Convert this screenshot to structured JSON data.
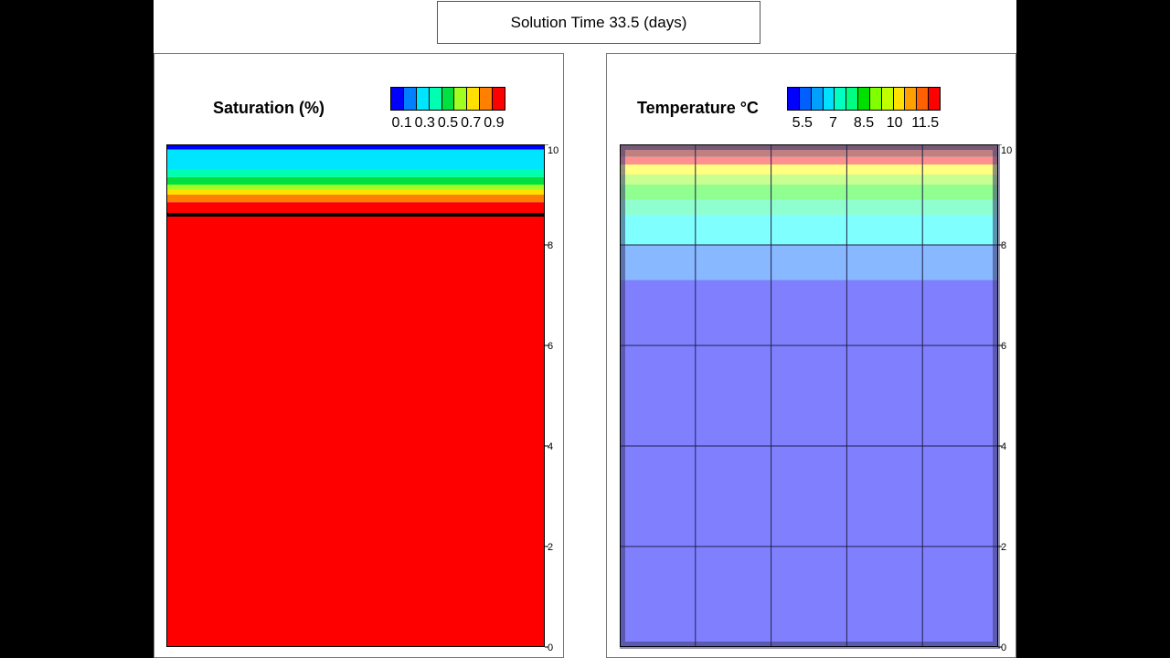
{
  "header": {
    "title": "Solution Time 33.5 (days)"
  },
  "colors": {
    "page_bg": "#000000",
    "sheet_bg": "#ffffff"
  },
  "chart_data": [
    {
      "type": "heatmap",
      "title": "Saturation (%)",
      "legend": {
        "tick_labels": [
          "0.1",
          "0.3",
          "0.5",
          "0.7",
          "0.9"
        ],
        "colors": [
          "#0000ff",
          "#0080ff",
          "#00e5ff",
          "#00ffb0",
          "#00e040",
          "#a0ff20",
          "#ffe000",
          "#ff8000",
          "#ff0000"
        ]
      },
      "y_axis": {
        "ticks": [
          "0",
          "2",
          "4",
          "6",
          "8",
          "10"
        ],
        "ylim": [
          0,
          10
        ]
      },
      "bands": [
        {
          "y0": 9.9,
          "y1": 10.0,
          "color": "#0000ff"
        },
        {
          "y0": 9.5,
          "y1": 9.9,
          "color": "#00e5ff"
        },
        {
          "y0": 9.35,
          "y1": 9.5,
          "color": "#00ffb0"
        },
        {
          "y0": 9.2,
          "y1": 9.35,
          "color": "#00e040"
        },
        {
          "y0": 9.1,
          "y1": 9.2,
          "color": "#a0ff20"
        },
        {
          "y0": 9.0,
          "y1": 9.1,
          "color": "#ffe000"
        },
        {
          "y0": 8.85,
          "y1": 9.0,
          "color": "#ff8000"
        },
        {
          "y0": 0.0,
          "y1": 8.85,
          "color": "#ff0000"
        }
      ],
      "contour_line_y": 8.6
    },
    {
      "type": "heatmap",
      "title": "Temperature °C",
      "legend": {
        "tick_labels": [
          "5.5",
          "7",
          "8.5",
          "10",
          "11.5"
        ],
        "colors": [
          "#0000ff",
          "#0060ff",
          "#00a0ff",
          "#00e0ff",
          "#00ffc0",
          "#00ff80",
          "#00e000",
          "#80ff00",
          "#c0ff00",
          "#ffe000",
          "#ffa000",
          "#ff6000",
          "#ff0000"
        ]
      },
      "y_axis": {
        "ticks": [
          "0",
          "2",
          "4",
          "6",
          "8",
          "10"
        ],
        "ylim": [
          0,
          10
        ]
      },
      "bands": [
        {
          "y0": 9.75,
          "y1": 10.0,
          "color": "#c08080"
        },
        {
          "y0": 9.6,
          "y1": 9.75,
          "color": "#ff9090"
        },
        {
          "y0": 9.4,
          "y1": 9.6,
          "color": "#ffff80"
        },
        {
          "y0": 9.2,
          "y1": 9.4,
          "color": "#c8ff90"
        },
        {
          "y0": 8.9,
          "y1": 9.2,
          "color": "#90ff90"
        },
        {
          "y0": 8.6,
          "y1": 8.9,
          "color": "#90ffd0"
        },
        {
          "y0": 8.0,
          "y1": 8.6,
          "color": "#80ffff"
        },
        {
          "y0": 7.3,
          "y1": 8.0,
          "color": "#88b8ff"
        },
        {
          "y0": 0.0,
          "y1": 7.3,
          "color": "#8080ff"
        }
      ],
      "grid": true,
      "grid_rows": 5,
      "grid_cols": 5
    }
  ]
}
